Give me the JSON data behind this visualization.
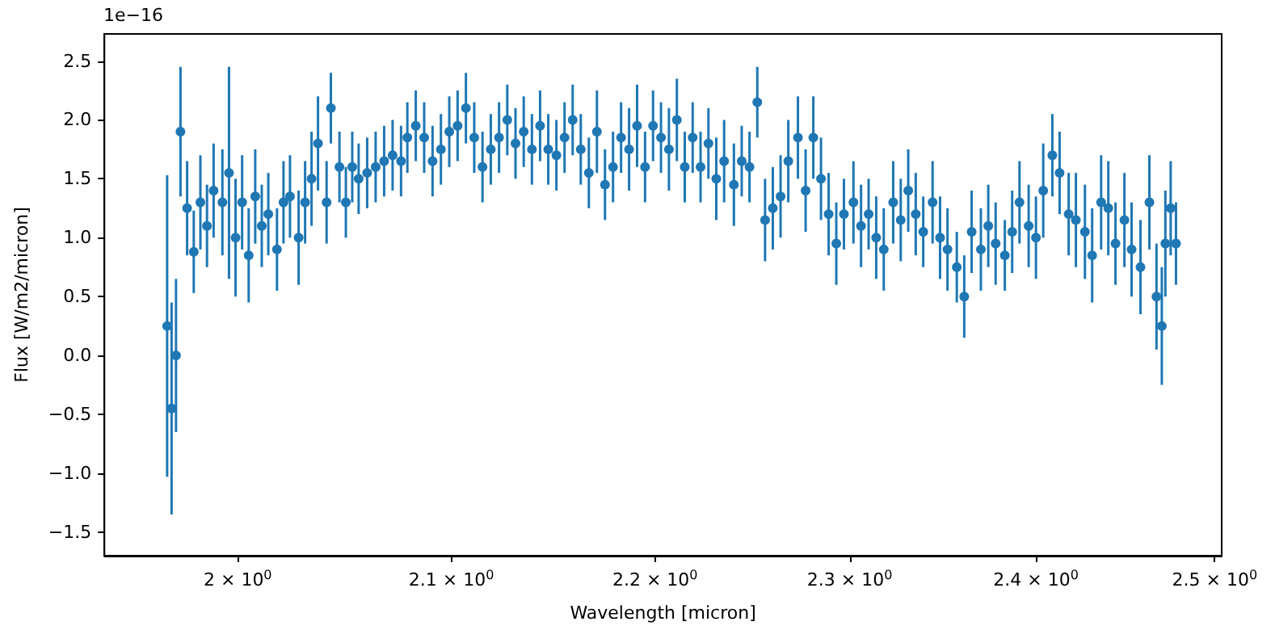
{
  "chart_data": {
    "type": "scatter",
    "xlabel": "Wavelength [micron]",
    "ylabel": "Flux [W/m2/micron]",
    "annotations": [
      "1e−16"
    ],
    "log": "x",
    "marker": "circle",
    "color": "#1f77b4",
    "xlim": [
      1.94,
      2.504
    ],
    "ylim": [
      -1.7,
      2.73
    ],
    "xticks": [
      {
        "value": 2.0,
        "label": "2 × 10$^{0}$"
      },
      {
        "value": 2.1,
        "label": "2.1 × 10$^{0}$"
      },
      {
        "value": 2.2,
        "label": "2.2 × 10$^{0}$"
      },
      {
        "value": 2.3,
        "label": "2.3 × 10$^{0}$"
      },
      {
        "value": 2.4,
        "label": "2.4 × 10$^{0}$"
      },
      {
        "value": 2.5,
        "label": "2.5 × 10$^{0}$"
      }
    ],
    "yticks": [
      {
        "value": -1.5,
        "label": "−1.5"
      },
      {
        "value": -1.0,
        "label": "−1.0"
      },
      {
        "value": -0.5,
        "label": "−0.5"
      },
      {
        "value": 0.0,
        "label": "0.0"
      },
      {
        "value": 0.5,
        "label": "0.5"
      },
      {
        "value": 1.0,
        "label": "1.0"
      },
      {
        "value": 1.5,
        "label": "1.5"
      },
      {
        "value": 2.0,
        "label": "2.0"
      },
      {
        "value": 2.5,
        "label": "2.5"
      }
    ],
    "x": [
      1.968,
      1.97,
      1.972,
      1.974,
      1.977,
      1.98,
      1.983,
      1.986,
      1.989,
      1.993,
      1.996,
      1.999,
      2.002,
      2.005,
      2.008,
      2.011,
      2.014,
      2.018,
      2.021,
      2.024,
      2.028,
      2.031,
      2.034,
      2.037,
      2.041,
      2.043,
      2.047,
      2.05,
      2.053,
      2.056,
      2.06,
      2.064,
      2.068,
      2.072,
      2.076,
      2.079,
      2.083,
      2.087,
      2.091,
      2.095,
      2.099,
      2.103,
      2.107,
      2.111,
      2.115,
      2.119,
      2.123,
      2.127,
      2.131,
      2.135,
      2.139,
      2.143,
      2.147,
      2.151,
      2.155,
      2.159,
      2.163,
      2.167,
      2.171,
      2.175,
      2.179,
      2.183,
      2.187,
      2.191,
      2.195,
      2.199,
      2.203,
      2.207,
      2.211,
      2.215,
      2.219,
      2.223,
      2.227,
      2.231,
      2.235,
      2.24,
      2.244,
      2.248,
      2.252,
      2.256,
      2.26,
      2.264,
      2.268,
      2.273,
      2.277,
      2.281,
      2.285,
      2.289,
      2.293,
      2.297,
      2.302,
      2.306,
      2.31,
      2.314,
      2.318,
      2.323,
      2.327,
      2.331,
      2.335,
      2.339,
      2.344,
      2.348,
      2.352,
      2.357,
      2.361,
      2.365,
      2.37,
      2.374,
      2.378,
      2.383,
      2.387,
      2.391,
      2.396,
      2.4,
      2.404,
      2.409,
      2.413,
      2.418,
      2.422,
      2.427,
      2.431,
      2.436,
      2.44,
      2.444,
      2.449,
      2.453,
      2.458,
      2.463,
      2.467,
      2.47,
      2.472,
      2.475,
      2.478
    ],
    "values": [
      0.25,
      -0.45,
      0.0,
      1.9,
      1.25,
      0.88,
      1.3,
      1.1,
      1.4,
      1.3,
      1.55,
      1.0,
      1.3,
      0.85,
      1.35,
      1.1,
      1.2,
      0.9,
      1.3,
      1.35,
      1.0,
      1.3,
      1.5,
      1.8,
      1.3,
      2.1,
      1.6,
      1.3,
      1.6,
      1.5,
      1.55,
      1.6,
      1.65,
      1.7,
      1.65,
      1.85,
      1.95,
      1.85,
      1.65,
      1.75,
      1.9,
      1.95,
      2.1,
      1.85,
      1.6,
      1.75,
      1.85,
      2.0,
      1.8,
      1.9,
      1.75,
      1.95,
      1.75,
      1.7,
      1.85,
      2.0,
      1.75,
      1.55,
      1.9,
      1.45,
      1.6,
      1.85,
      1.75,
      1.95,
      1.6,
      1.95,
      1.85,
      1.75,
      2.0,
      1.6,
      1.85,
      1.6,
      1.8,
      1.5,
      1.65,
      1.45,
      1.65,
      1.6,
      2.15,
      1.15,
      1.25,
      1.35,
      1.65,
      1.85,
      1.4,
      1.85,
      1.5,
      1.2,
      0.95,
      1.2,
      1.3,
      1.1,
      1.2,
      1.0,
      0.9,
      1.3,
      1.15,
      1.4,
      1.2,
      1.05,
      1.3,
      1.0,
      0.9,
      0.75,
      0.5,
      1.05,
      0.9,
      1.1,
      0.95,
      0.85,
      1.05,
      1.3,
      1.1,
      1.0,
      1.4,
      1.7,
      1.55,
      1.2,
      1.15,
      1.05,
      0.85,
      1.3,
      1.25,
      0.95,
      1.15,
      0.9,
      0.75,
      1.3,
      0.5,
      0.25,
      0.95,
      1.25,
      0.95
    ],
    "errors": [
      1.28,
      0.9,
      0.65,
      0.55,
      0.4,
      0.35,
      0.4,
      0.35,
      0.4,
      0.45,
      0.9,
      0.5,
      0.4,
      0.4,
      0.4,
      0.35,
      0.35,
      0.35,
      0.35,
      0.35,
      0.4,
      0.35,
      0.4,
      0.4,
      0.35,
      0.3,
      0.3,
      0.3,
      0.3,
      0.3,
      0.3,
      0.3,
      0.3,
      0.3,
      0.3,
      0.3,
      0.3,
      0.3,
      0.3,
      0.3,
      0.3,
      0.3,
      0.3,
      0.3,
      0.3,
      0.3,
      0.3,
      0.3,
      0.3,
      0.3,
      0.3,
      0.3,
      0.3,
      0.3,
      0.3,
      0.3,
      0.3,
      0.3,
      0.35,
      0.3,
      0.3,
      0.3,
      0.35,
      0.35,
      0.3,
      0.3,
      0.3,
      0.35,
      0.35,
      0.3,
      0.3,
      0.3,
      0.3,
      0.35,
      0.35,
      0.35,
      0.3,
      0.3,
      0.3,
      0.35,
      0.35,
      0.35,
      0.35,
      0.35,
      0.35,
      0.35,
      0.35,
      0.35,
      0.35,
      0.3,
      0.35,
      0.35,
      0.3,
      0.35,
      0.35,
      0.35,
      0.35,
      0.35,
      0.35,
      0.3,
      0.35,
      0.35,
      0.35,
      0.3,
      0.35,
      0.35,
      0.35,
      0.35,
      0.35,
      0.3,
      0.35,
      0.35,
      0.35,
      0.35,
      0.4,
      0.35,
      0.35,
      0.35,
      0.4,
      0.4,
      0.4,
      0.4,
      0.4,
      0.35,
      0.4,
      0.4,
      0.4,
      0.4,
      0.45,
      0.5,
      0.45,
      0.4,
      0.35
    ]
  }
}
